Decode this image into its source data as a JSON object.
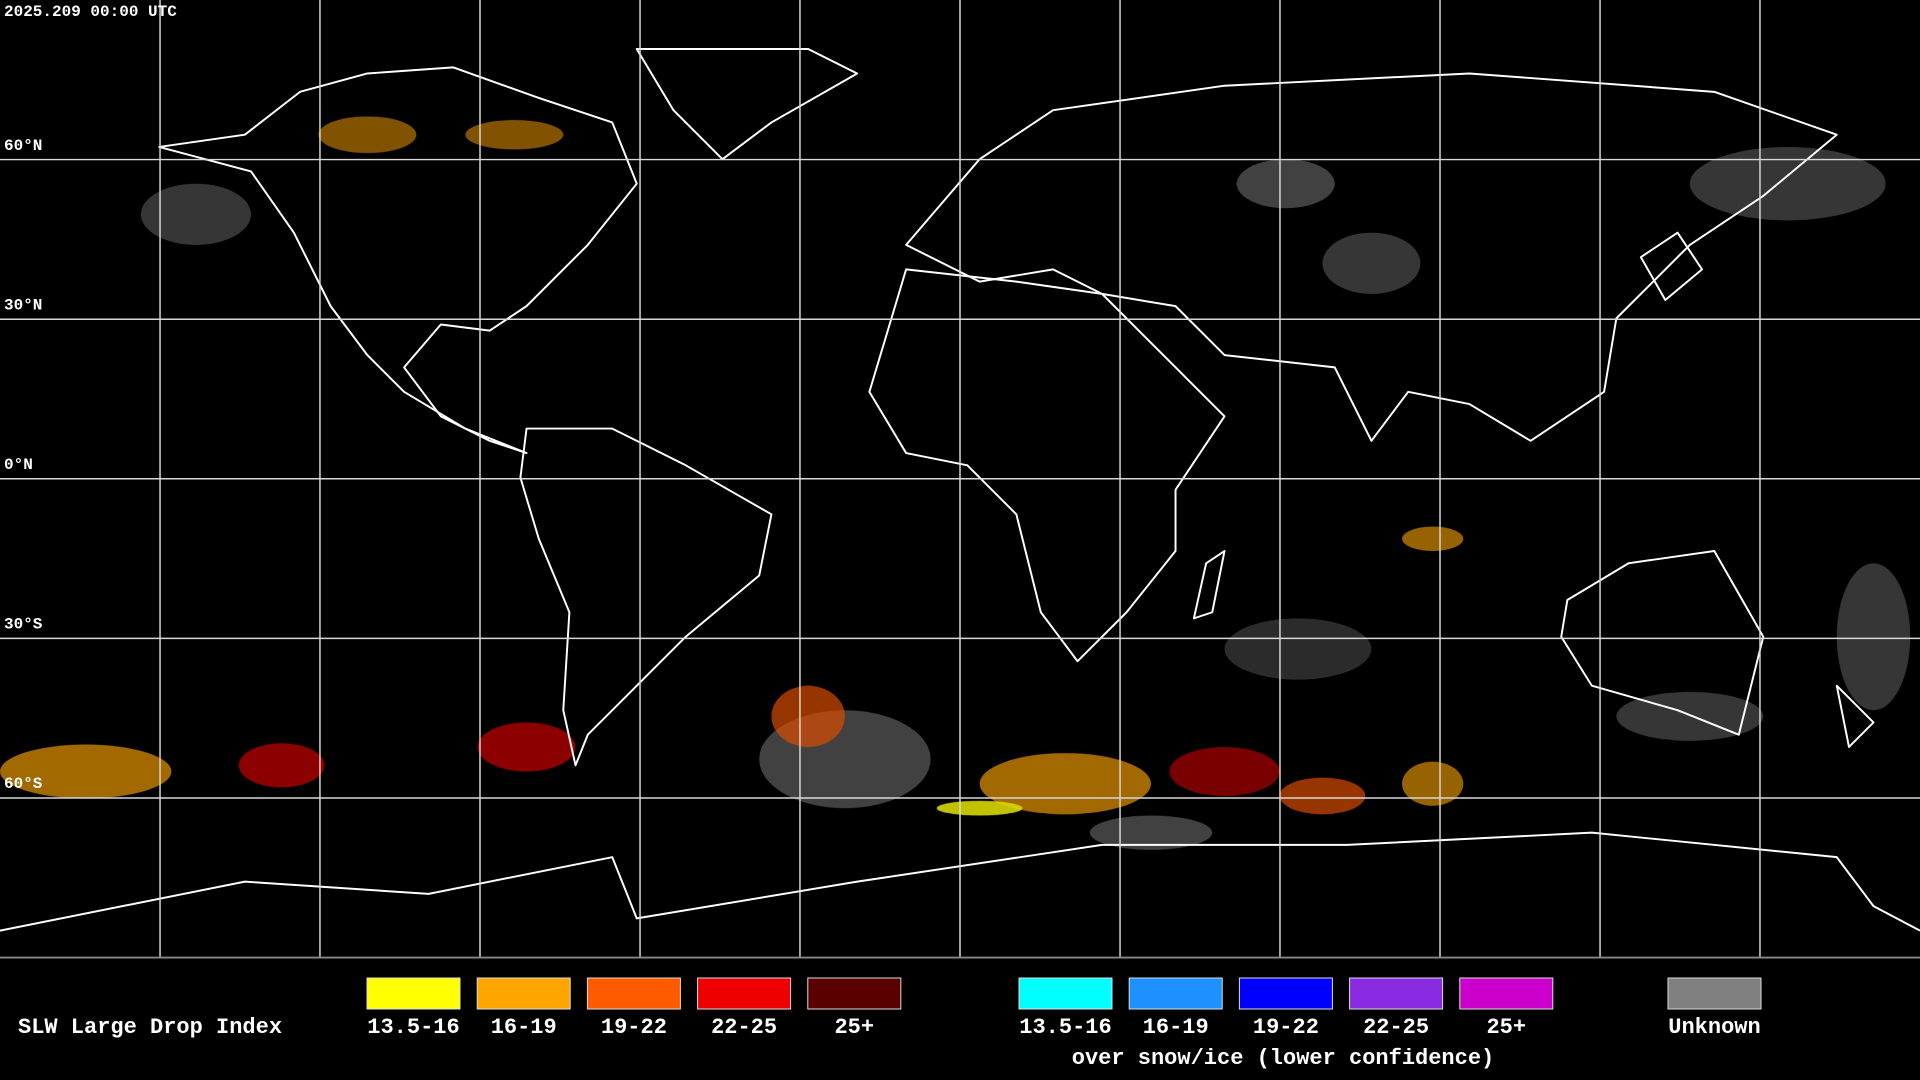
{
  "header": {
    "timestamp": "2025.209 00:00 UTC"
  },
  "map": {
    "latitude_labels": [
      "60°N",
      "30°N",
      "0°N",
      "30°S",
      "60°S"
    ]
  },
  "legend": {
    "title": "SLW Large Drop Index",
    "entries": [
      {
        "label": "13.5-16",
        "color": "#ffff00"
      },
      {
        "label": "16-19",
        "color": "#ffa500"
      },
      {
        "label": "19-22",
        "color": "#ff5a00"
      },
      {
        "label": "22-25",
        "color": "#ee0000"
      },
      {
        "label": "25+",
        "color": "#5a0000"
      }
    ],
    "snow_ice_entries": [
      {
        "label": "13.5-16",
        "color": "#00ffff"
      },
      {
        "label": "16-19",
        "color": "#1e90ff"
      },
      {
        "label": "19-22",
        "color": "#0000ff"
      },
      {
        "label": "22-25",
        "color": "#8a2be2"
      },
      {
        "label": "25+",
        "color": "#cc00cc"
      }
    ],
    "snow_ice_note": "over snow/ice (lower confidence)",
    "unknown": {
      "label": "Unknown",
      "color": "#808080"
    }
  }
}
